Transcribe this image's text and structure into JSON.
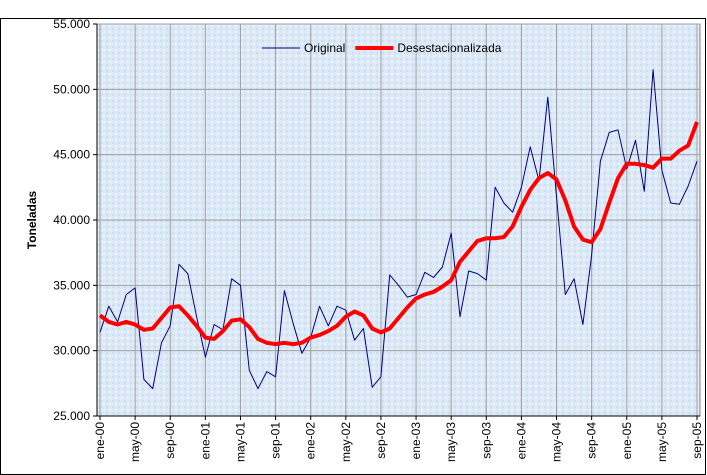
{
  "chart_data": {
    "type": "line",
    "y_label": "Toneladas",
    "categories": [
      "ene-00",
      null,
      null,
      null,
      "may-00",
      null,
      null,
      null,
      "sep-00",
      null,
      null,
      null,
      "ene-01",
      null,
      null,
      null,
      "may-01",
      null,
      null,
      null,
      "sep-01",
      null,
      null,
      null,
      "ene-02",
      null,
      null,
      null,
      "may-02",
      null,
      null,
      null,
      "sep-02",
      null,
      null,
      null,
      "ene-03",
      null,
      null,
      null,
      "may-03",
      null,
      null,
      null,
      "sep-03",
      null,
      null,
      null,
      "ene-04",
      null,
      null,
      null,
      "may-04",
      null,
      null,
      null,
      "sep-04",
      null,
      null,
      null,
      "ene-05",
      null,
      null,
      null,
      "may-05",
      null,
      null,
      null,
      "sep-05"
    ],
    "series": [
      {
        "name": "Original",
        "color": "#000080",
        "width": 1,
        "values": [
          31400,
          33400,
          32200,
          34300,
          34800,
          27800,
          27100,
          30600,
          31900,
          36600,
          35900,
          32600,
          29500,
          32000,
          31600,
          35500,
          35000,
          28500,
          27100,
          28400,
          28000,
          34600,
          32100,
          29800,
          31000,
          33400,
          31900,
          33400,
          33100,
          30800,
          31700,
          27200,
          28000,
          35800,
          35000,
          34100,
          34300,
          36000,
          35600,
          36400,
          39000,
          32600,
          36100,
          35900,
          35400,
          42500,
          41300,
          40600,
          42500,
          45600,
          43000,
          49400,
          41800,
          34300,
          35500,
          32000,
          37300,
          44500,
          46700,
          46900,
          43900,
          46100,
          42200,
          51500,
          43800,
          41300,
          41200,
          42600,
          44500
        ]
      },
      {
        "name": "Desestacionalizada",
        "color": "#ff0000",
        "width": 4,
        "values": [
          32700,
          32200,
          32000,
          32200,
          32000,
          31600,
          31700,
          32500,
          33300,
          33400,
          32700,
          31900,
          31000,
          30900,
          31500,
          32300,
          32400,
          31800,
          30900,
          30600,
          30500,
          30600,
          30500,
          30600,
          31000,
          31200,
          31500,
          31900,
          32600,
          33000,
          32700,
          31700,
          31400,
          31700,
          32500,
          33300,
          34000,
          34300,
          34500,
          34900,
          35400,
          36800,
          37600,
          38400,
          38600,
          38600,
          38700,
          39500,
          41000,
          42300,
          43200,
          43600,
          43100,
          41500,
          39500,
          38500,
          38300,
          39300,
          41300,
          43200,
          44300,
          44300,
          44200,
          44000,
          44700,
          44700,
          45300,
          45700,
          47500
        ]
      }
    ],
    "ylim": [
      25000,
      55000
    ],
    "yticks": [
      {
        "value": 25000,
        "label": "25.000"
      },
      {
        "value": 30000,
        "label": "30.000"
      },
      {
        "value": 35000,
        "label": "35.000"
      },
      {
        "value": 40000,
        "label": "40.000"
      },
      {
        "value": 45000,
        "label": "45.000"
      },
      {
        "value": 50000,
        "label": "50.000"
      },
      {
        "value": 55000,
        "label": "55.000"
      }
    ],
    "grid": true,
    "legend": "top"
  }
}
